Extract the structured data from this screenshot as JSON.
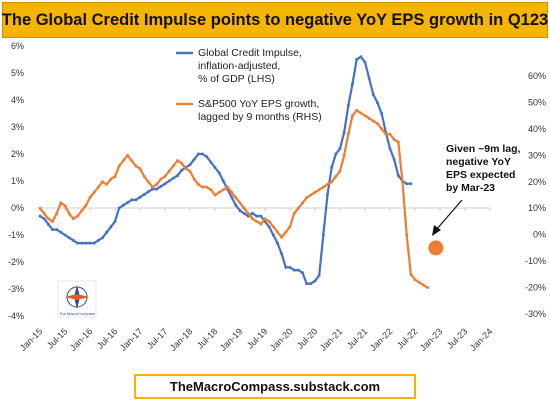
{
  "title": "The Global Credit Impulse points to negative YoY EPS growth in Q123",
  "footer": "TheMacroCompass.substack.com",
  "logo_text": "The MacroCompass",
  "chart_data": {
    "type": "line",
    "x_ticks": [
      "Jan-15",
      "Jul-15",
      "Jan-16",
      "Jul-16",
      "Jan-17",
      "Jul-17",
      "Jan-18",
      "Jul-18",
      "Jan-19",
      "Jul-19",
      "Jan-20",
      "Jul-20",
      "Jan-21",
      "Jul-21",
      "Jan-22",
      "Jul-22",
      "Jan-23",
      "Jul-23",
      "Jan-24"
    ],
    "y_left": {
      "ticks": [
        "-4%",
        "-3%",
        "-2%",
        "-1%",
        "0%",
        "1%",
        "2%",
        "3%",
        "4%",
        "5%",
        "6%"
      ],
      "range": [
        -4,
        6
      ]
    },
    "y_right": {
      "ticks": [
        "-30%",
        "-20%",
        "-10%",
        "0%",
        "10%",
        "20%",
        "30%",
        "40%",
        "50%",
        "60%"
      ],
      "range": [
        -30,
        60
      ]
    },
    "grid": false,
    "series": [
      {
        "name": "Global Credit Impulse, inflation-adjusted, % of GDP (LHS)",
        "axis": "left",
        "color": "#4472c4",
        "x": [
          "2015-01",
          "2015-02",
          "2015-03",
          "2015-04",
          "2015-05",
          "2015-06",
          "2015-07",
          "2015-08",
          "2015-09",
          "2015-10",
          "2015-11",
          "2015-12",
          "2016-01",
          "2016-02",
          "2016-03",
          "2016-04",
          "2016-05",
          "2016-06",
          "2016-07",
          "2016-08",
          "2016-09",
          "2016-10",
          "2016-11",
          "2016-12",
          "2017-01",
          "2017-02",
          "2017-03",
          "2017-04",
          "2017-05",
          "2017-06",
          "2017-07",
          "2017-08",
          "2017-09",
          "2017-10",
          "2017-11",
          "2017-12",
          "2018-01",
          "2018-02",
          "2018-03",
          "2018-04",
          "2018-05",
          "2018-06",
          "2018-07",
          "2018-08",
          "2018-09",
          "2018-10",
          "2018-11",
          "2018-12",
          "2019-01",
          "2019-02",
          "2019-03",
          "2019-04",
          "2019-05",
          "2019-06",
          "2019-07",
          "2019-08",
          "2019-09",
          "2019-10",
          "2019-11",
          "2019-12",
          "2020-01",
          "2020-02",
          "2020-03",
          "2020-04",
          "2020-05",
          "2020-06",
          "2020-07",
          "2020-08",
          "2020-09",
          "2020-10",
          "2020-11",
          "2020-12",
          "2021-01",
          "2021-02",
          "2021-03",
          "2021-04",
          "2021-05",
          "2021-06",
          "2021-07",
          "2021-08",
          "2021-09",
          "2021-10",
          "2021-11",
          "2021-12",
          "2022-01",
          "2022-02",
          "2022-03",
          "2022-04",
          "2022-05",
          "2022-06"
        ],
        "y": [
          -0.3,
          -0.4,
          -0.6,
          -0.8,
          -0.8,
          -0.9,
          -1.0,
          -1.1,
          -1.2,
          -1.3,
          -1.3,
          -1.3,
          -1.3,
          -1.3,
          -1.2,
          -1.1,
          -0.9,
          -0.7,
          -0.5,
          0.0,
          0.1,
          0.2,
          0.3,
          0.3,
          0.4,
          0.5,
          0.6,
          0.7,
          0.7,
          0.8,
          0.9,
          1.0,
          1.1,
          1.2,
          1.4,
          1.5,
          1.6,
          1.8,
          2.0,
          2.0,
          1.9,
          1.7,
          1.5,
          1.3,
          1.0,
          0.7,
          0.4,
          0.1,
          -0.1,
          -0.2,
          -0.3,
          -0.2,
          -0.3,
          -0.3,
          -0.5,
          -0.7,
          -1.0,
          -1.3,
          -1.7,
          -2.2,
          -2.2,
          -2.3,
          -2.3,
          -2.4,
          -2.8,
          -2.8,
          -2.7,
          -2.5,
          -1.0,
          0.5,
          1.5,
          2.0,
          2.2,
          2.8,
          3.8,
          4.6,
          5.5,
          5.6,
          5.4,
          4.8,
          4.2,
          3.9,
          3.5,
          2.8,
          2.2,
          1.8,
          1.2,
          1.0,
          0.9,
          0.9
        ]
      },
      {
        "name": "S&P500 YoY EPS growth, lagged by 9 months (RHS)",
        "axis": "right",
        "color": "#ed7d31",
        "x": [
          "2015-01",
          "2015-02",
          "2015-03",
          "2015-04",
          "2015-05",
          "2015-06",
          "2015-07",
          "2015-08",
          "2015-09",
          "2015-10",
          "2015-11",
          "2015-12",
          "2016-01",
          "2016-02",
          "2016-03",
          "2016-04",
          "2016-05",
          "2016-06",
          "2016-07",
          "2016-08",
          "2016-09",
          "2016-10",
          "2016-11",
          "2016-12",
          "2017-01",
          "2017-02",
          "2017-03",
          "2017-04",
          "2017-05",
          "2017-06",
          "2017-07",
          "2017-08",
          "2017-09",
          "2017-10",
          "2017-11",
          "2017-12",
          "2018-01",
          "2018-02",
          "2018-03",
          "2018-04",
          "2018-05",
          "2018-06",
          "2018-07",
          "2018-08",
          "2018-09",
          "2018-10",
          "2018-11",
          "2018-12",
          "2019-01",
          "2019-02",
          "2019-03",
          "2019-04",
          "2019-05",
          "2019-06",
          "2019-07",
          "2019-08",
          "2019-09",
          "2019-10",
          "2019-11",
          "2019-12",
          "2020-01",
          "2020-02",
          "2020-03",
          "2020-04",
          "2020-05",
          "2020-06",
          "2020-07",
          "2020-08",
          "2020-09",
          "2020-10",
          "2020-11",
          "2020-12",
          "2021-01",
          "2021-02",
          "2021-03",
          "2021-04",
          "2021-05",
          "2021-06",
          "2021-07",
          "2021-08",
          "2021-09",
          "2021-10",
          "2021-11",
          "2021-12",
          "2022-01",
          "2022-02",
          "2022-03",
          "2022-04",
          "2022-05",
          "2022-06",
          "2022-07",
          "2022-08",
          "2022-09",
          "2022-10"
        ],
        "y": [
          10,
          8,
          6,
          5,
          8,
          12,
          11,
          8,
          6,
          7,
          9,
          11,
          14,
          16,
          18,
          20,
          19,
          21,
          22,
          26,
          28,
          30,
          28,
          26,
          25,
          22,
          20,
          18,
          19,
          21,
          22,
          24,
          26,
          28,
          27,
          25,
          24,
          21,
          19,
          18,
          18,
          17,
          15,
          16,
          17,
          18,
          16,
          14,
          12,
          10,
          8,
          6,
          5,
          4,
          6,
          5,
          3,
          1,
          -1,
          1,
          3,
          8,
          10,
          12,
          14,
          15,
          16,
          17,
          18,
          19,
          20,
          22,
          24,
          30,
          38,
          45,
          47,
          46,
          45,
          44,
          43,
          42,
          40,
          38,
          38,
          36,
          35,
          20,
          0,
          -15,
          -17,
          -18,
          -19,
          -20
        ]
      }
    ],
    "expected_point": {
      "x": "2022-12",
      "y": -5,
      "axis": "right",
      "color": "#ed7d31"
    },
    "legend": [
      {
        "text": [
          "Global Credit Impulse,",
          "inflation-adjusted,",
          "% of GDP (LHS)"
        ],
        "color": "#4472c4"
      },
      {
        "text": [
          "S&P500 YoY EPS growth,",
          "lagged by 9 months (RHS)"
        ],
        "color": "#ed7d31"
      }
    ],
    "annotation": {
      "text": [
        "Given ~9m lag,",
        "negative YoY",
        "EPS expected",
        "by Mar-23"
      ]
    }
  }
}
